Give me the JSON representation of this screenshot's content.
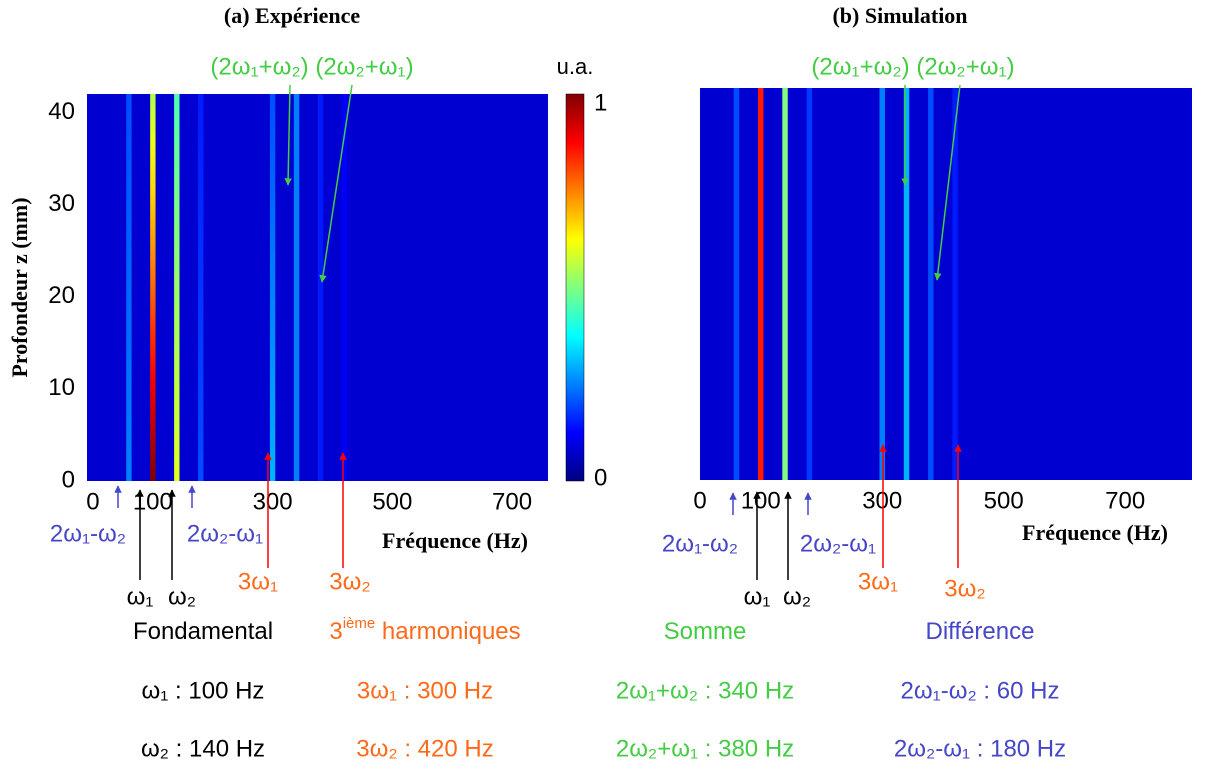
{
  "chart_data": [
    {
      "type": "heatmap",
      "title": "(a) Expérience",
      "xlabel": "Fréquence (Hz)",
      "ylabel": "Profondeur z (mm)",
      "xlim": [
        -10,
        760
      ],
      "ylim": [
        0,
        42
      ],
      "xticks": [
        0,
        100,
        300,
        500,
        700
      ],
      "yticks": [
        0,
        10,
        20,
        30,
        40
      ],
      "background": 0.08,
      "x": [
        60,
        100,
        140,
        180,
        300,
        340,
        380,
        420
      ],
      "values": [
        [
          0.25,
          0.2
        ],
        [
          1.0,
          0.55
        ],
        [
          0.6,
          0.45
        ],
        [
          0.2,
          0.15
        ],
        [
          0.3,
          0.2
        ],
        [
          0.25,
          0.25
        ],
        [
          0.15,
          0.15
        ],
        [
          0.12,
          0.12
        ]
      ],
      "annotations": [
        {
          "text": "(2ω₁+ω₂) (2ω₂+ω₁)",
          "color": "#44cc44"
        },
        {
          "text": "2ω₁-ω₂",
          "color": "#4646c8"
        },
        {
          "text": "2ω₂-ω₁",
          "color": "#4646c8"
        },
        {
          "text": "ω₁",
          "color": "#000000"
        },
        {
          "text": "ω₂",
          "color": "#000000"
        },
        {
          "text": "3ω₁",
          "color": "#ff6a1a"
        },
        {
          "text": "3ω₂",
          "color": "#ff6a1a"
        }
      ],
      "colorbar": {
        "label": "u.a.",
        "lim": [
          0,
          1
        ],
        "ticks": [
          0,
          1
        ]
      }
    },
    {
      "type": "heatmap",
      "title": "(b) Simulation",
      "xlabel": "Fréquence (Hz)",
      "xlim": [
        0,
        810
      ],
      "ylim": [
        0,
        42
      ],
      "xticks": [
        0,
        100,
        300,
        500,
        700
      ],
      "background": 0.08,
      "x": [
        60,
        100,
        140,
        180,
        300,
        340,
        380,
        420
      ],
      "values": [
        [
          0.2,
          0.2
        ],
        [
          0.85,
          0.85
        ],
        [
          0.5,
          0.5
        ],
        [
          0.18,
          0.18
        ],
        [
          0.25,
          0.25
        ],
        [
          0.3,
          0.3
        ],
        [
          0.2,
          0.2
        ],
        [
          0.15,
          0.15
        ]
      ],
      "annotations": [
        {
          "text": "(2ω₁+ω₂) (2ω₂+ω₁)",
          "color": "#44cc44"
        },
        {
          "text": "2ω₁-ω₂",
          "color": "#4646c8"
        },
        {
          "text": "2ω₂-ω₁",
          "color": "#4646c8"
        },
        {
          "text": "ω₁",
          "color": "#000000"
        },
        {
          "text": "ω₂",
          "color": "#000000"
        },
        {
          "text": "3ω₁",
          "color": "#ff6a1a"
        },
        {
          "text": "3ω₂",
          "color": "#ff6a1a"
        }
      ]
    }
  ],
  "legend": {
    "groups": [
      {
        "title": "Fondamental",
        "color": "#000000",
        "items": [
          "ω₁ : 100 Hz",
          "ω₂ : 140 Hz"
        ]
      },
      {
        "title": "3",
        "title_sup": "ième",
        "title_rest": " harmoniques",
        "color": "#ff6a1a",
        "items": [
          "3ω₁ : 300 Hz",
          "3ω₂ : 420 Hz"
        ]
      },
      {
        "title": "Somme",
        "color": "#44cc44",
        "items": [
          "2ω₁+ω₂ : 340 Hz",
          "2ω₂+ω₁ : 380 Hz"
        ]
      },
      {
        "title": "Différence",
        "color": "#4646c8",
        "items": [
          "2ω₁-ω₂ : 60 Hz",
          "2ω₂-ω₁ : 180 Hz"
        ]
      }
    ]
  }
}
